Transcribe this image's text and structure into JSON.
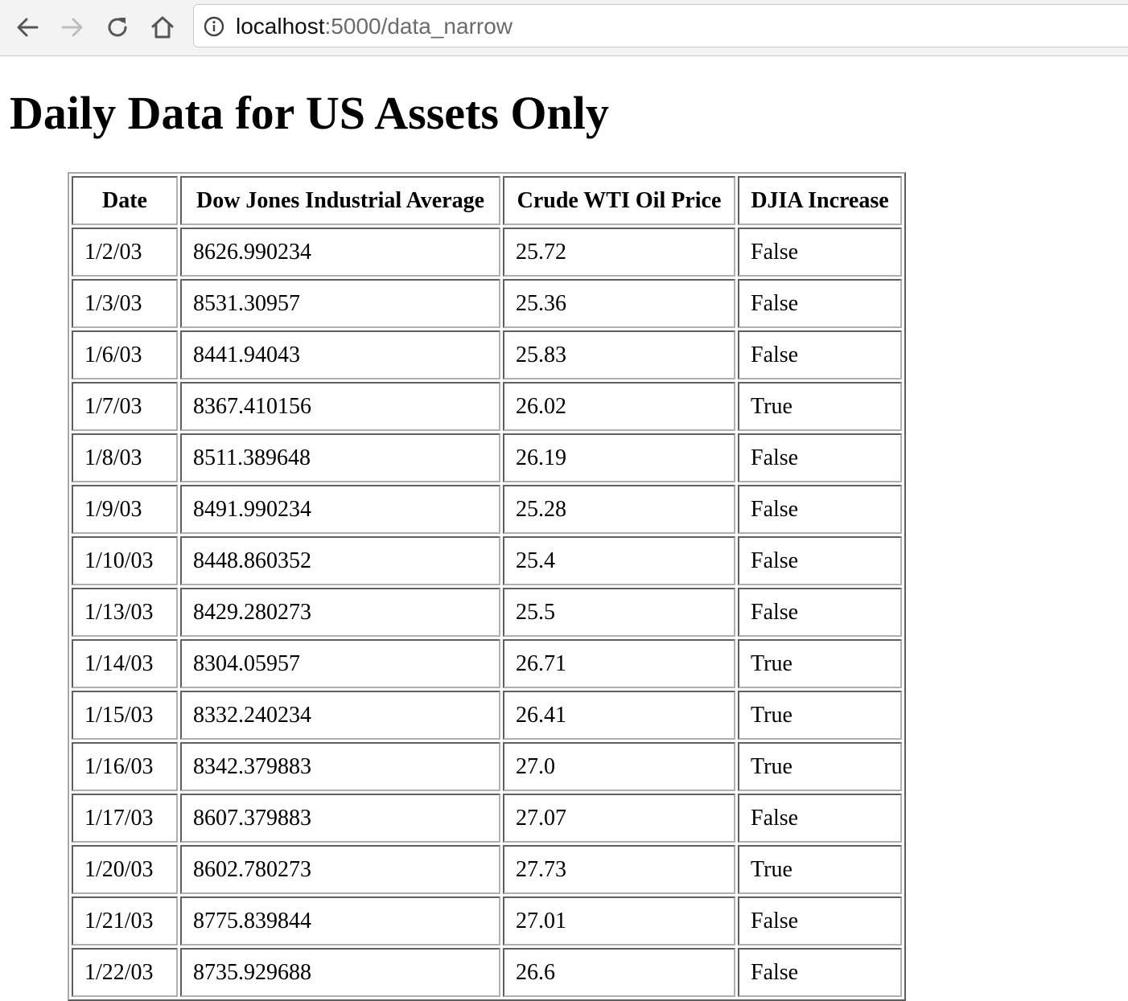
{
  "browser": {
    "url_host": "localhost",
    "url_rest": ":5000/data_narrow"
  },
  "page": {
    "title": "Daily Data for US Assets Only"
  },
  "table": {
    "headers": [
      "Date",
      "Dow Jones Industrial Average",
      "Crude WTI Oil Price",
      "DJIA Increase"
    ],
    "rows": [
      [
        "1/2/03",
        "8626.990234",
        "25.72",
        "False"
      ],
      [
        "1/3/03",
        "8531.30957",
        "25.36",
        "False"
      ],
      [
        "1/6/03",
        "8441.94043",
        "25.83",
        "False"
      ],
      [
        "1/7/03",
        "8367.410156",
        "26.02",
        "True"
      ],
      [
        "1/8/03",
        "8511.389648",
        "26.19",
        "False"
      ],
      [
        "1/9/03",
        "8491.990234",
        "25.28",
        "False"
      ],
      [
        "1/10/03",
        "8448.860352",
        "25.4",
        "False"
      ],
      [
        "1/13/03",
        "8429.280273",
        "25.5",
        "False"
      ],
      [
        "1/14/03",
        "8304.05957",
        "26.71",
        "True"
      ],
      [
        "1/15/03",
        "8332.240234",
        "26.41",
        "True"
      ],
      [
        "1/16/03",
        "8342.379883",
        "27.0",
        "True"
      ],
      [
        "1/17/03",
        "8607.379883",
        "27.07",
        "False"
      ],
      [
        "1/20/03",
        "8602.780273",
        "27.73",
        "True"
      ],
      [
        "1/21/03",
        "8775.839844",
        "27.01",
        "False"
      ],
      [
        "1/22/03",
        "8735.929688",
        "26.6",
        "False"
      ]
    ]
  }
}
